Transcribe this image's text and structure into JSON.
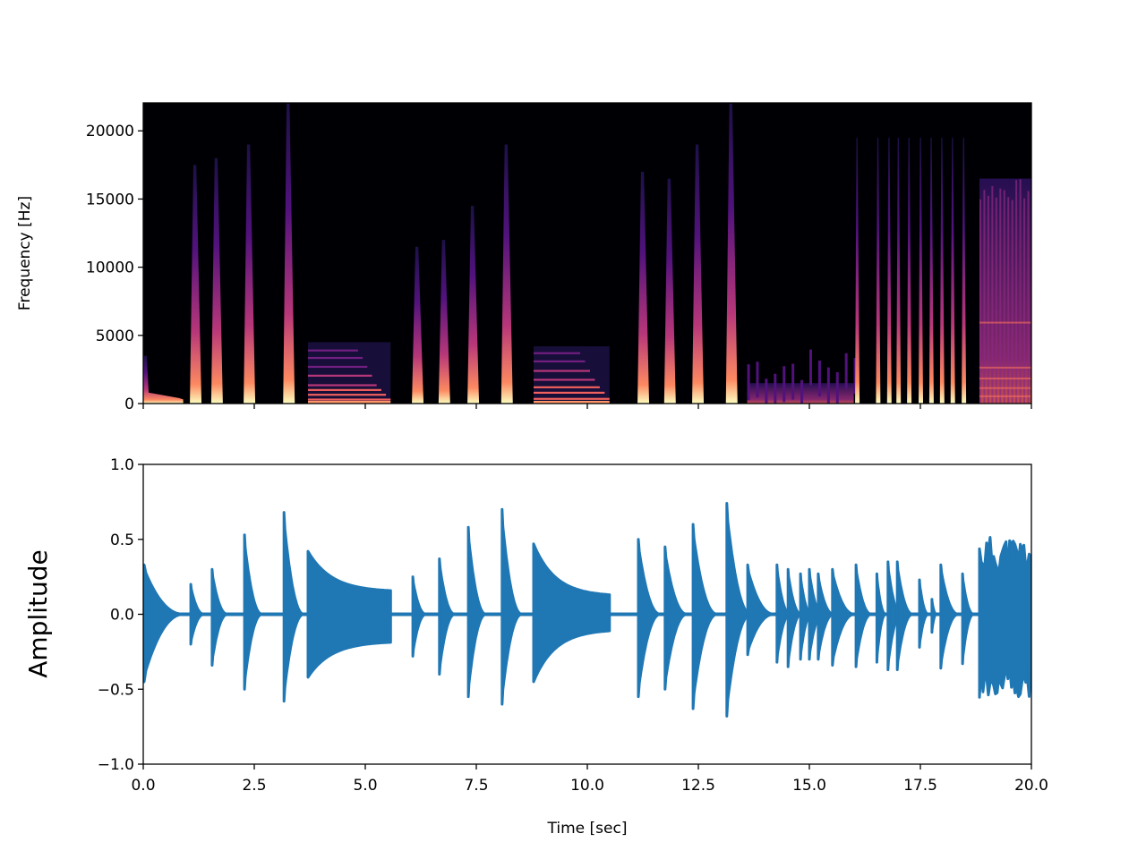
{
  "chart_data": [
    {
      "type": "heatmap",
      "title": "",
      "xlabel": "",
      "ylabel": "Frequency [Hz]",
      "xlim": [
        0,
        20
      ],
      "ylim": [
        0,
        22050
      ],
      "yticks": [
        "0",
        "5000",
        "10000",
        "15000",
        "20000"
      ],
      "ytick_values": [
        0,
        5000,
        10000,
        15000,
        20000
      ],
      "xtick_values": [
        0,
        2.5,
        5,
        7.5,
        10,
        12.5,
        15,
        17.5,
        20
      ],
      "colormap": "magma",
      "onsets": [
        {
          "t": 0.0,
          "fmax": 3500,
          "kind": "decay"
        },
        {
          "t": 1.05,
          "fmax": 17500
        },
        {
          "t": 1.53,
          "fmax": 18000
        },
        {
          "t": 2.26,
          "fmax": 19000
        },
        {
          "t": 3.15,
          "fmax": 22000
        },
        {
          "t": 6.05,
          "fmax": 11500
        },
        {
          "t": 6.65,
          "fmax": 12000
        },
        {
          "t": 7.3,
          "fmax": 14500
        },
        {
          "t": 8.06,
          "fmax": 19000
        },
        {
          "t": 11.13,
          "fmax": 17000
        },
        {
          "t": 11.73,
          "fmax": 16500
        },
        {
          "t": 12.36,
          "fmax": 19000
        },
        {
          "t": 13.12,
          "fmax": 22000
        },
        {
          "t": 16.03,
          "fmax": 19500
        },
        {
          "t": 16.5,
          "fmax": 19500
        },
        {
          "t": 16.75,
          "fmax": 19500
        },
        {
          "t": 16.96,
          "fmax": 19500
        },
        {
          "t": 17.2,
          "fmax": 19500
        },
        {
          "t": 17.46,
          "fmax": 19500
        },
        {
          "t": 17.7,
          "fmax": 19500
        },
        {
          "t": 17.94,
          "fmax": 19500
        },
        {
          "t": 18.18,
          "fmax": 19500
        },
        {
          "t": 18.43,
          "fmax": 19500
        }
      ],
      "harmonic_notes": [
        {
          "start": 3.71,
          "end": 5.57,
          "fmax": 4500,
          "harmonics": [
            300,
            650,
            1000,
            1350,
            2050,
            2700,
            3350,
            3900
          ]
        },
        {
          "start": 8.79,
          "end": 10.5,
          "fmax": 4200,
          "harmonics": [
            350,
            800,
            1200,
            1750,
            2400,
            3100,
            3700
          ]
        }
      ],
      "noise_regions": [
        {
          "start": 13.6,
          "end": 16.0,
          "fmax": 1500
        },
        {
          "start": 18.83,
          "end": 20.0,
          "fmax": 16500
        }
      ]
    },
    {
      "type": "line",
      "title": "",
      "xlabel": "Time [sec]",
      "ylabel": "Amplitude",
      "xlim": [
        0,
        20
      ],
      "ylim": [
        -1,
        1
      ],
      "xticks": [
        "0.0",
        "2.5",
        "5.0",
        "7.5",
        "10.0",
        "12.5",
        "15.0",
        "17.5",
        "20.0"
      ],
      "xtick_values": [
        0,
        2.5,
        5,
        7.5,
        10,
        12.5,
        15,
        17.5,
        20
      ],
      "yticks": [
        "−1.0",
        "−0.5",
        "0.0",
        "0.5",
        "1.0"
      ],
      "ytick_values": [
        -1,
        -0.5,
        0,
        0.5,
        1
      ],
      "color": "#1f77b4",
      "hits": [
        {
          "t": 0.0,
          "pos": 0.33,
          "neg": -0.45,
          "decay": 0.9
        },
        {
          "t": 1.05,
          "pos": 0.2,
          "neg": -0.2,
          "decay": 0.3
        },
        {
          "t": 1.53,
          "pos": 0.3,
          "neg": -0.34,
          "decay": 0.35
        },
        {
          "t": 2.26,
          "pos": 0.53,
          "neg": -0.5,
          "decay": 0.4
        },
        {
          "t": 3.15,
          "pos": 0.68,
          "neg": -0.58,
          "decay": 0.45
        },
        {
          "t": 6.05,
          "pos": 0.25,
          "neg": -0.28,
          "decay": 0.3
        },
        {
          "t": 6.65,
          "pos": 0.37,
          "neg": -0.4,
          "decay": 0.35
        },
        {
          "t": 7.3,
          "pos": 0.58,
          "neg": -0.55,
          "decay": 0.4
        },
        {
          "t": 8.06,
          "pos": 0.7,
          "neg": -0.6,
          "decay": 0.45
        },
        {
          "t": 11.13,
          "pos": 0.5,
          "neg": -0.55,
          "decay": 0.5
        },
        {
          "t": 11.73,
          "pos": 0.45,
          "neg": -0.5,
          "decay": 0.5
        },
        {
          "t": 12.36,
          "pos": 0.6,
          "neg": -0.63,
          "decay": 0.55
        },
        {
          "t": 13.12,
          "pos": 0.74,
          "neg": -0.68,
          "decay": 0.55
        },
        {
          "t": 13.59,
          "pos": 0.33,
          "neg": -0.27,
          "decay": 0.6
        },
        {
          "t": 14.25,
          "pos": 0.33,
          "neg": -0.32,
          "decay": 0.3
        },
        {
          "t": 14.5,
          "pos": 0.3,
          "neg": -0.35,
          "decay": 0.3
        },
        {
          "t": 14.78,
          "pos": 0.27,
          "neg": -0.3,
          "decay": 0.25
        },
        {
          "t": 14.98,
          "pos": 0.3,
          "neg": -0.3,
          "decay": 0.3
        },
        {
          "t": 15.18,
          "pos": 0.27,
          "neg": -0.3,
          "decay": 0.35
        },
        {
          "t": 15.5,
          "pos": 0.3,
          "neg": -0.34,
          "decay": 0.5
        },
        {
          "t": 16.03,
          "pos": 0.33,
          "neg": -0.35,
          "decay": 0.35
        },
        {
          "t": 16.5,
          "pos": 0.27,
          "neg": -0.32,
          "decay": 0.2
        },
        {
          "t": 16.75,
          "pos": 0.35,
          "neg": -0.37,
          "decay": 0.3
        },
        {
          "t": 16.96,
          "pos": 0.35,
          "neg": -0.37,
          "decay": 0.35
        },
        {
          "t": 17.46,
          "pos": 0.23,
          "neg": -0.22,
          "decay": 0.2
        },
        {
          "t": 17.74,
          "pos": 0.1,
          "neg": -0.12,
          "decay": 0.1
        },
        {
          "t": 17.94,
          "pos": 0.33,
          "neg": -0.36,
          "decay": 0.4
        },
        {
          "t": 18.43,
          "pos": 0.27,
          "neg": -0.33,
          "decay": 0.25
        }
      ],
      "sustained": [
        {
          "start": 3.71,
          "end": 5.57,
          "pos_start": 0.42,
          "pos_end": 0.15,
          "neg_start": -0.42,
          "neg_end": -0.18
        },
        {
          "start": 8.79,
          "end": 10.5,
          "pos_start": 0.47,
          "pos_end": 0.12,
          "neg_start": -0.45,
          "neg_end": -0.1
        }
      ],
      "dense": {
        "start": 18.83,
        "end": 20.0,
        "pos": 0.5,
        "neg": -0.55
      }
    }
  ]
}
